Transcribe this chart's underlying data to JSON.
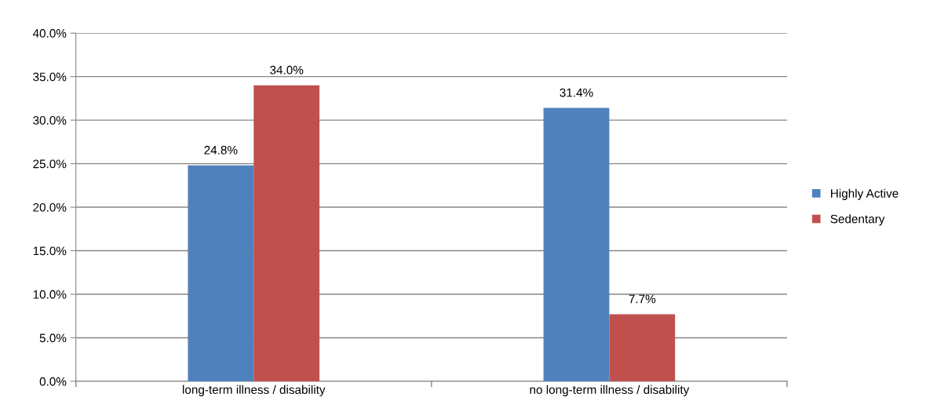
{
  "chart_data": {
    "type": "bar",
    "categories": [
      "long-term illness / disability",
      "no long-term illness / disability"
    ],
    "series": [
      {
        "name": "Highly Active",
        "color": "#4f81bd",
        "values": [
          24.8,
          31.4
        ],
        "value_labels": [
          "24.8%",
          "31.4%"
        ]
      },
      {
        "name": "Sedentary",
        "color": "#c0504d",
        "values": [
          34.0,
          7.7
        ],
        "value_labels": [
          "34.0%",
          "7.7%"
        ]
      }
    ],
    "ylim": [
      0,
      40
    ],
    "yticks": [
      {
        "value": 0,
        "label": "0.0%"
      },
      {
        "value": 5,
        "label": "5.0%"
      },
      {
        "value": 10,
        "label": "10.0%"
      },
      {
        "value": 15,
        "label": "15.0%"
      },
      {
        "value": 20,
        "label": "20.0%"
      },
      {
        "value": 25,
        "label": "25.0%"
      },
      {
        "value": 30,
        "label": "30.0%"
      },
      {
        "value": 35,
        "label": "35.0%"
      },
      {
        "value": 40,
        "label": "40.0%"
      }
    ],
    "grid": "y",
    "legend": "right"
  }
}
